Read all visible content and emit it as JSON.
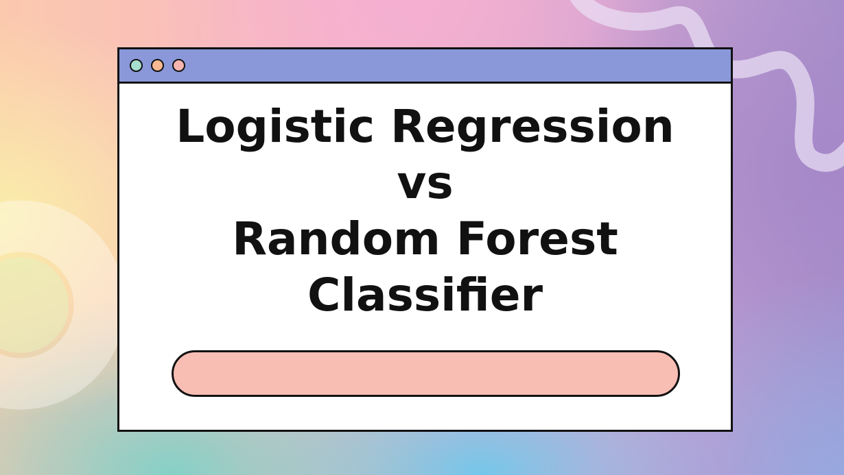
{
  "colors": {
    "titlebar": "#8a98da",
    "dot_green": "#a6dfcf",
    "dot_orange": "#f8b993",
    "dot_pink": "#f6b5b0",
    "progress_fill": "#f8bdb3",
    "text": "#111111"
  },
  "window": {
    "controls": [
      "close-dot",
      "minimize-dot",
      "maximize-dot"
    ],
    "title_lines": [
      "Logistic Regression",
      "vs",
      "Random Forest",
      "Classifier"
    ]
  },
  "progress": {
    "value": 1.0
  }
}
